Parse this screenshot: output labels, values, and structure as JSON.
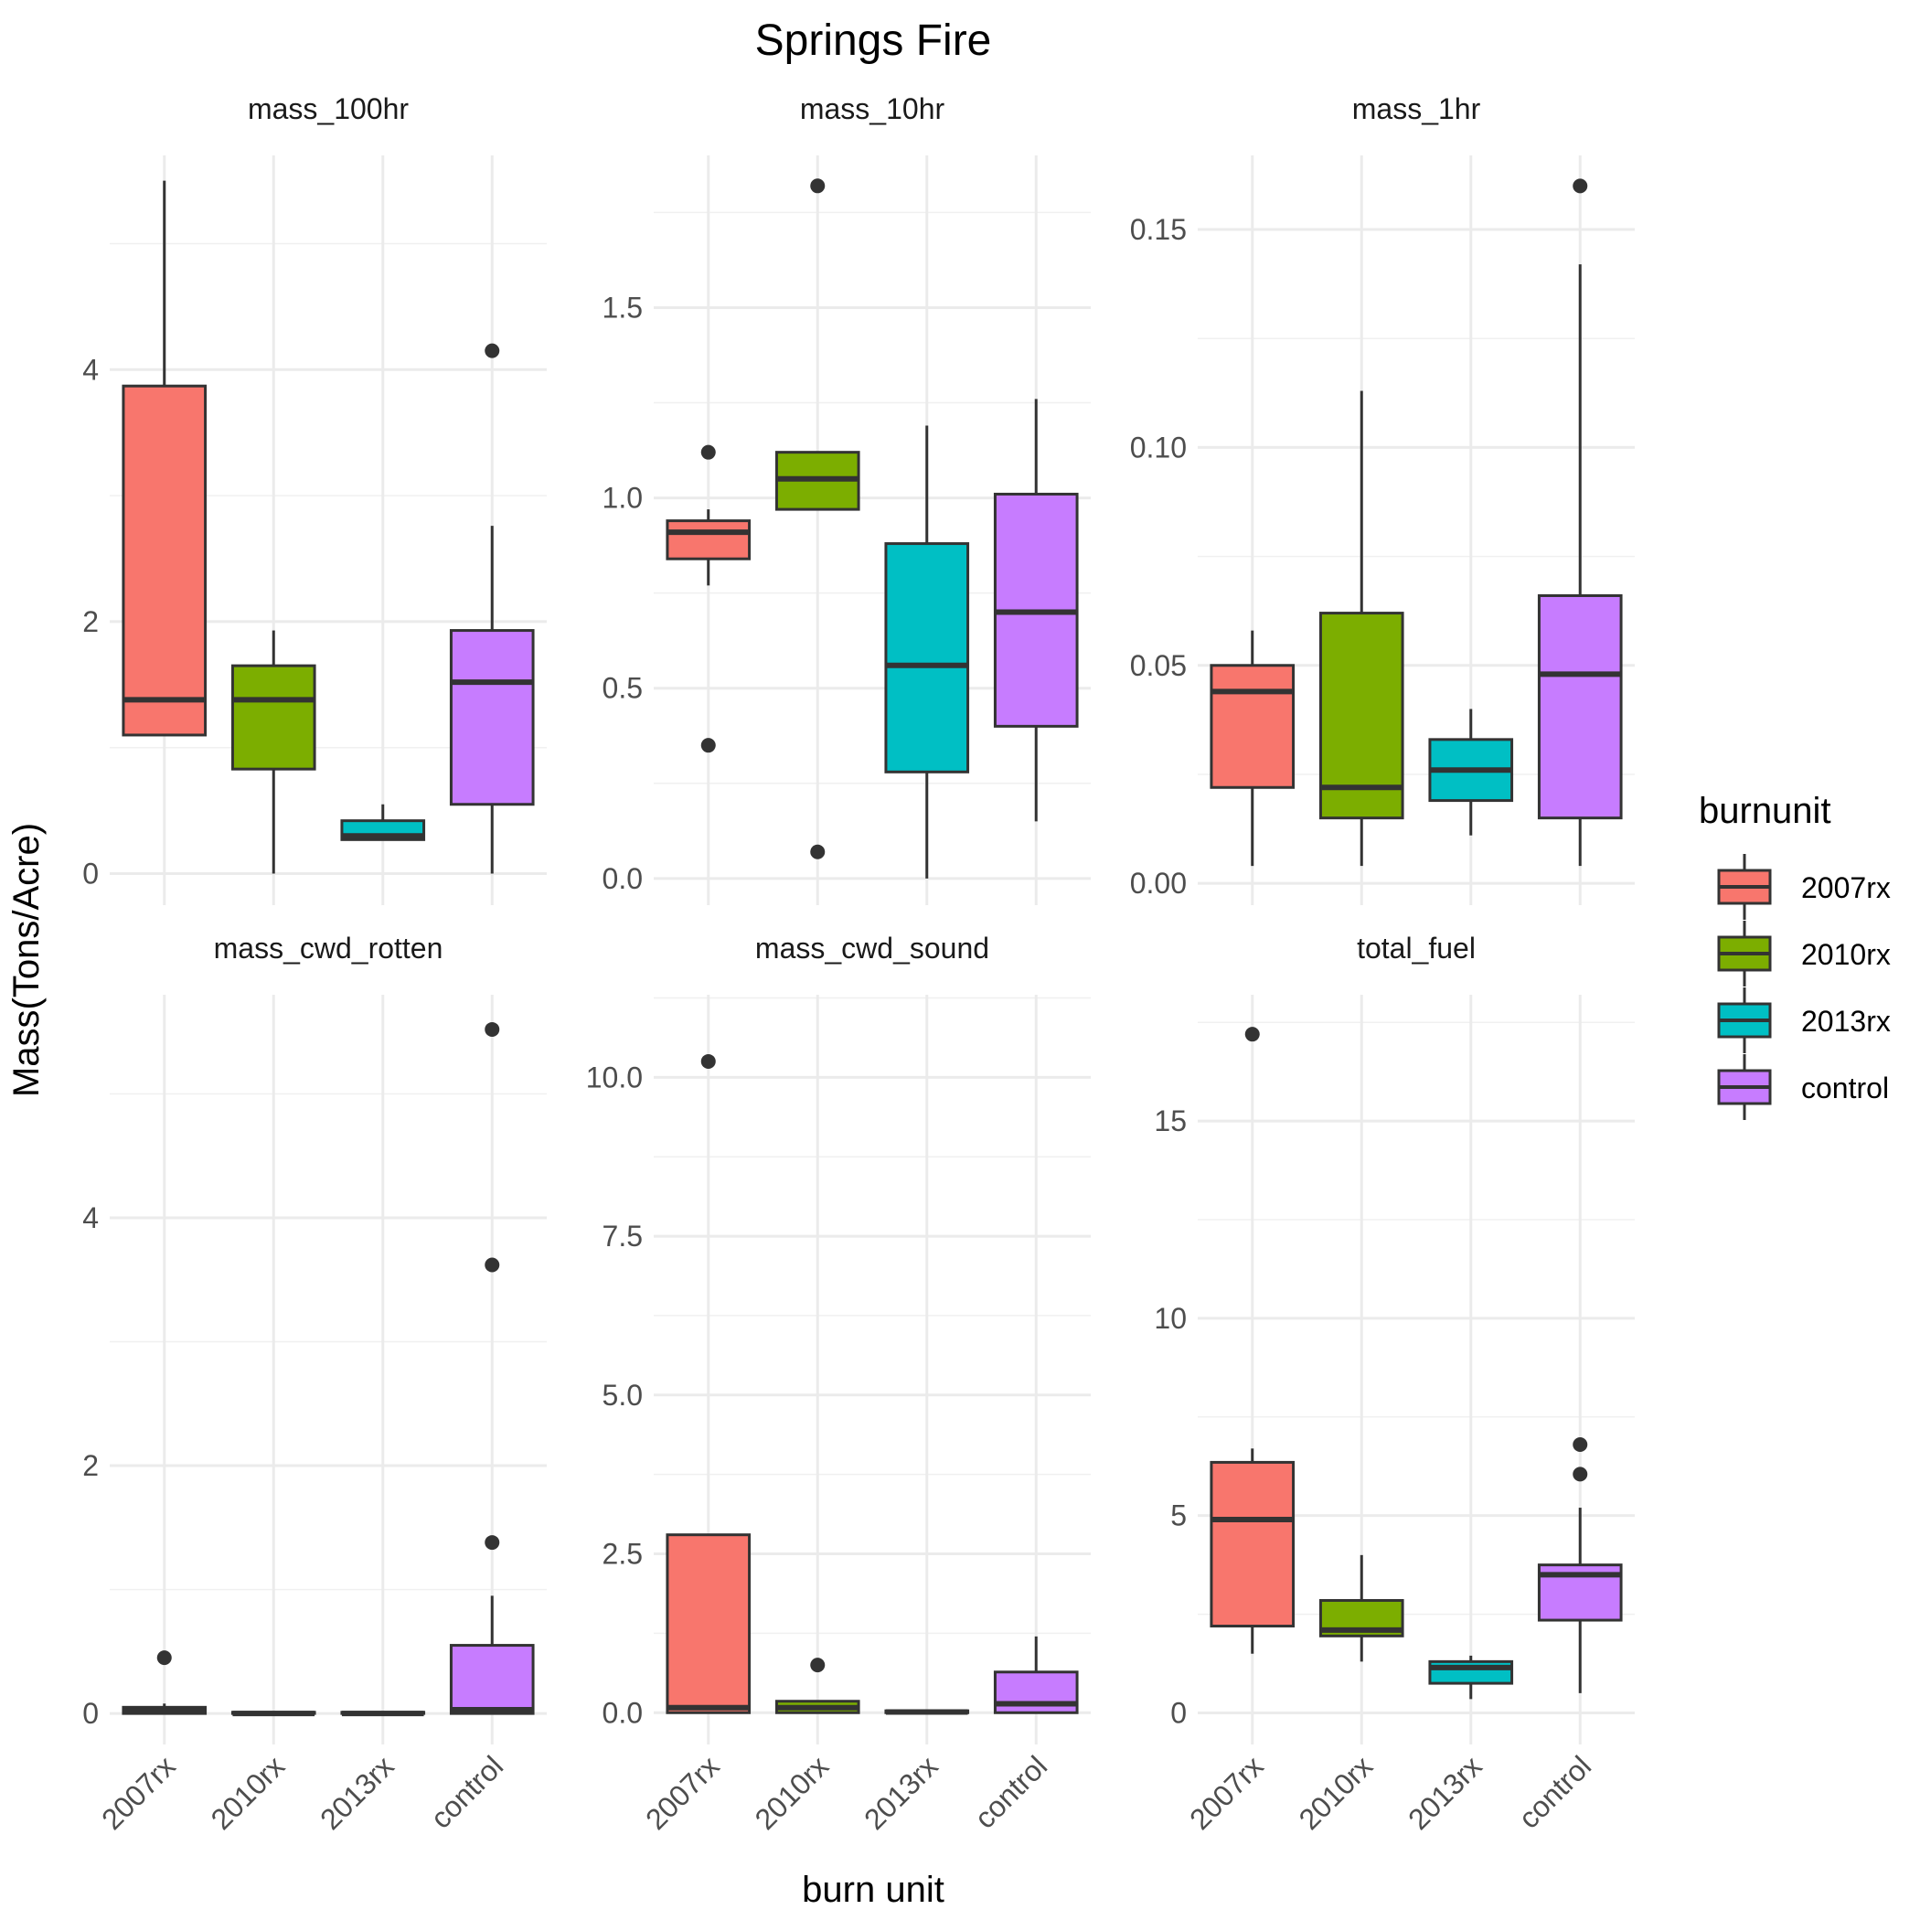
{
  "chart_data": {
    "type": "boxplot",
    "title": "Springs Fire",
    "xlabel": "burn unit",
    "ylabel": "Mass(Tons/Acre)",
    "categories": [
      "2007rx",
      "2010rx",
      "2013rx",
      "control"
    ],
    "legend": {
      "title": "burnunit",
      "placement": "right",
      "entries": [
        {
          "label": "2007rx",
          "color": "#F8766D"
        },
        {
          "label": "2010rx",
          "color": "#7CAE00"
        },
        {
          "label": "2013rx",
          "color": "#00BFC4"
        },
        {
          "label": "control",
          "color": "#C77CFF"
        }
      ]
    },
    "grid": true,
    "facets": [
      {
        "name": "mass_100hr",
        "ylim": [
          -0.25,
          5.7
        ],
        "yticks": [
          0,
          2,
          4
        ],
        "yticklabels": [
          "0",
          "2",
          "4"
        ],
        "boxes": [
          {
            "category": "2007rx",
            "min": 1.1,
            "q1": 1.1,
            "median": 1.38,
            "q3": 3.87,
            "max": 5.5,
            "outliers": []
          },
          {
            "category": "2010rx",
            "min": 0.0,
            "q1": 0.83,
            "median": 1.38,
            "q3": 1.65,
            "max": 1.93,
            "outliers": []
          },
          {
            "category": "2013rx",
            "min": 0.27,
            "q1": 0.27,
            "median": 0.3,
            "q3": 0.42,
            "max": 0.55,
            "outliers": []
          },
          {
            "category": "control",
            "min": 0.0,
            "q1": 0.55,
            "median": 1.52,
            "q3": 1.93,
            "max": 2.76,
            "outliers": [
              4.15
            ]
          }
        ]
      },
      {
        "name": "mass_10hr",
        "ylim": [
          -0.07,
          1.9
        ],
        "yticks": [
          0,
          0.5,
          1.0,
          1.5
        ],
        "yticklabels": [
          "0.0",
          "0.5",
          "1.0",
          "1.5"
        ],
        "boxes": [
          {
            "category": "2007rx",
            "min": 0.77,
            "q1": 0.84,
            "median": 0.91,
            "q3": 0.94,
            "max": 0.97,
            "outliers": [
              1.12,
              0.35
            ]
          },
          {
            "category": "2010rx",
            "min": 0.97,
            "q1": 0.97,
            "median": 1.05,
            "q3": 1.12,
            "max": 1.12,
            "outliers": [
              1.82,
              0.07
            ]
          },
          {
            "category": "2013rx",
            "min": 0.0,
            "q1": 0.28,
            "median": 0.56,
            "q3": 0.88,
            "max": 1.19,
            "outliers": []
          },
          {
            "category": "control",
            "min": 0.15,
            "q1": 0.4,
            "median": 0.7,
            "q3": 1.01,
            "max": 1.26,
            "outliers": []
          }
        ]
      },
      {
        "name": "mass_1hr",
        "ylim": [
          -0.005,
          0.167
        ],
        "yticks": [
          0,
          0.05,
          0.1,
          0.15
        ],
        "yticklabels": [
          "0.00",
          "0.05",
          "0.10",
          "0.15"
        ],
        "boxes": [
          {
            "category": "2007rx",
            "min": 0.004,
            "q1": 0.022,
            "median": 0.044,
            "q3": 0.05,
            "max": 0.058,
            "outliers": []
          },
          {
            "category": "2010rx",
            "min": 0.004,
            "q1": 0.015,
            "median": 0.022,
            "q3": 0.062,
            "max": 0.113,
            "outliers": []
          },
          {
            "category": "2013rx",
            "min": 0.011,
            "q1": 0.019,
            "median": 0.026,
            "q3": 0.033,
            "max": 0.04,
            "outliers": []
          },
          {
            "category": "control",
            "min": 0.004,
            "q1": 0.015,
            "median": 0.048,
            "q3": 0.066,
            "max": 0.142,
            "outliers": [
              0.16
            ]
          }
        ]
      },
      {
        "name": "mass_cwd_rotten",
        "ylim": [
          -0.25,
          5.8
        ],
        "yticks": [
          0,
          2,
          4
        ],
        "yticklabels": [
          "0",
          "2",
          "4"
        ],
        "boxes": [
          {
            "category": "2007rx",
            "min": 0.0,
            "q1": 0.0,
            "median": 0.02,
            "q3": 0.05,
            "max": 0.08,
            "outliers": [
              0.45
            ]
          },
          {
            "category": "2010rx",
            "min": 0.0,
            "q1": 0.0,
            "median": 0.0,
            "q3": 0.01,
            "max": 0.01,
            "outliers": []
          },
          {
            "category": "2013rx",
            "min": 0.0,
            "q1": 0.0,
            "median": 0.0,
            "q3": 0.01,
            "max": 0.01,
            "outliers": []
          },
          {
            "category": "control",
            "min": 0.0,
            "q1": 0.0,
            "median": 0.03,
            "q3": 0.55,
            "max": 0.95,
            "outliers": [
              5.52,
              3.62,
              1.38
            ]
          }
        ]
      },
      {
        "name": "mass_cwd_sound",
        "ylim": [
          -0.5,
          11.3
        ],
        "yticks": [
          0,
          2.5,
          5.0,
          7.5,
          10.0
        ],
        "yticklabels": [
          "0.0",
          "2.5",
          "5.0",
          "7.5",
          "10.0"
        ],
        "boxes": [
          {
            "category": "2007rx",
            "min": 0.0,
            "q1": 0.0,
            "median": 0.08,
            "q3": 2.8,
            "max": 2.8,
            "outliers": [
              10.25
            ]
          },
          {
            "category": "2010rx",
            "min": 0.0,
            "q1": 0.0,
            "median": 0.08,
            "q3": 0.18,
            "max": 0.18,
            "outliers": [
              0.75
            ]
          },
          {
            "category": "2013rx",
            "min": 0.0,
            "q1": 0.0,
            "median": 0.01,
            "q3": 0.03,
            "max": 0.03,
            "outliers": []
          },
          {
            "category": "control",
            "min": 0.0,
            "q1": 0.0,
            "median": 0.14,
            "q3": 0.64,
            "max": 1.2,
            "outliers": []
          }
        ]
      },
      {
        "name": "total_fuel",
        "ylim": [
          -0.8,
          18.2
        ],
        "yticks": [
          0,
          5,
          10,
          15
        ],
        "yticklabels": [
          "0",
          "5",
          "10",
          "15"
        ],
        "boxes": [
          {
            "category": "2007rx",
            "min": 1.5,
            "q1": 2.2,
            "median": 4.9,
            "q3": 6.35,
            "max": 6.7,
            "outliers": [
              17.2
            ]
          },
          {
            "category": "2010rx",
            "min": 1.3,
            "q1": 1.95,
            "median": 2.1,
            "q3": 2.85,
            "max": 4.0,
            "outliers": []
          },
          {
            "category": "2013rx",
            "min": 0.35,
            "q1": 0.75,
            "median": 1.15,
            "q3": 1.3,
            "max": 1.45,
            "outliers": []
          },
          {
            "category": "control",
            "min": 0.5,
            "q1": 2.35,
            "median": 3.5,
            "q3": 3.75,
            "max": 5.2,
            "outliers": [
              6.8,
              6.05
            ]
          }
        ]
      }
    ]
  }
}
